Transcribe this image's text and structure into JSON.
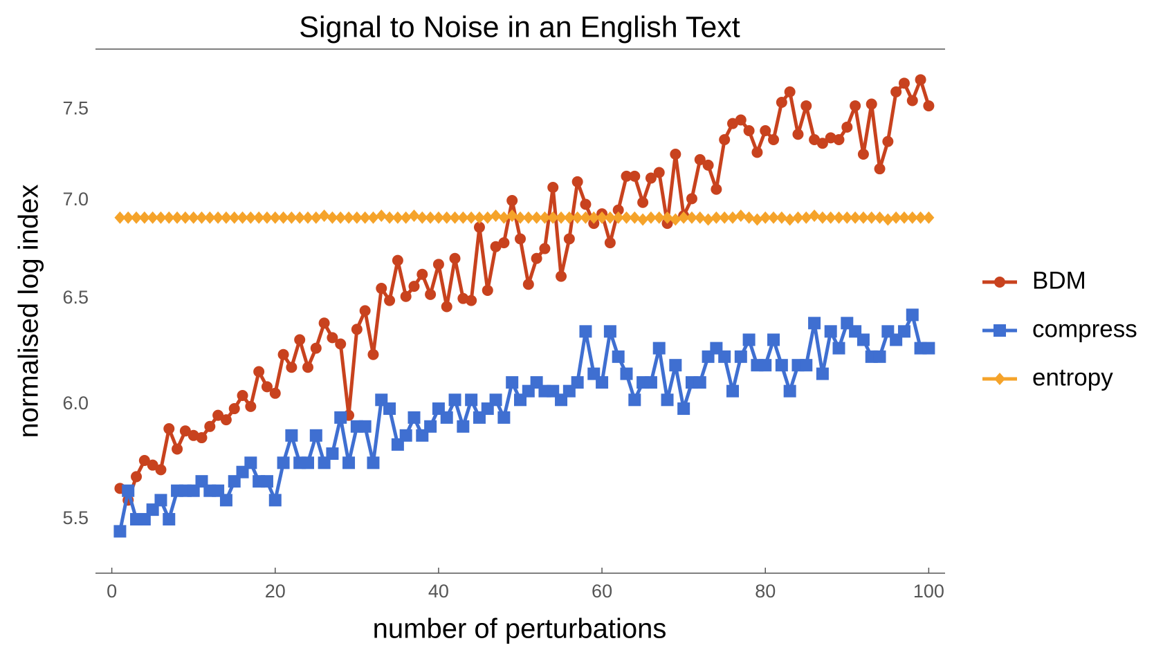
{
  "chart_data": {
    "type": "line",
    "title": "Signal to Noise in an English Text",
    "xlabel": "number of perturbations",
    "ylabel": "normalised log index",
    "x": [
      1,
      2,
      3,
      4,
      5,
      6,
      7,
      8,
      9,
      10,
      11,
      12,
      13,
      14,
      15,
      16,
      17,
      18,
      19,
      20,
      21,
      22,
      23,
      24,
      25,
      26,
      27,
      28,
      29,
      30,
      31,
      32,
      33,
      34,
      35,
      36,
      37,
      38,
      39,
      40,
      41,
      42,
      43,
      44,
      45,
      46,
      47,
      48,
      49,
      50,
      51,
      52,
      53,
      54,
      55,
      56,
      57,
      58,
      59,
      60,
      61,
      62,
      63,
      64,
      65,
      66,
      67,
      68,
      69,
      70,
      71,
      72,
      73,
      74,
      75,
      76,
      77,
      78,
      79,
      80,
      81,
      82,
      83,
      84,
      85,
      86,
      87,
      88,
      89,
      90,
      91,
      92,
      93,
      94,
      95,
      96,
      97,
      98,
      99,
      100
    ],
    "series": [
      {
        "name": "BDM",
        "color": "#c8421e",
        "marker": "circle",
        "values": [
          5.63,
          5.58,
          5.68,
          5.75,
          5.73,
          5.71,
          5.89,
          5.8,
          5.88,
          5.86,
          5.85,
          5.9,
          5.95,
          5.93,
          5.98,
          6.04,
          5.99,
          6.15,
          6.08,
          6.05,
          6.23,
          6.17,
          6.3,
          6.17,
          6.26,
          6.38,
          6.31,
          6.28,
          5.95,
          6.35,
          6.44,
          6.23,
          6.55,
          6.49,
          6.69,
          6.51,
          6.56,
          6.62,
          6.52,
          6.67,
          6.46,
          6.7,
          6.5,
          6.49,
          6.86,
          6.54,
          6.76,
          6.78,
          7.0,
          6.8,
          6.57,
          6.7,
          6.75,
          7.07,
          6.61,
          6.8,
          7.1,
          6.98,
          6.88,
          6.93,
          6.78,
          6.95,
          7.13,
          7.13,
          6.99,
          7.12,
          7.15,
          6.88,
          7.25,
          6.92,
          7.01,
          7.22,
          7.19,
          7.06,
          7.33,
          7.42,
          7.44,
          7.38,
          7.26,
          7.38,
          7.33,
          7.54,
          7.6,
          7.36,
          7.52,
          7.33,
          7.31,
          7.34,
          7.33,
          7.4,
          7.52,
          7.25,
          7.53,
          7.17,
          7.32,
          7.6,
          7.65,
          7.55,
          7.67,
          7.52
        ]
      },
      {
        "name": "compress",
        "color": "#3f6fd1",
        "marker": "square",
        "values": [
          5.45,
          5.62,
          5.5,
          5.5,
          5.54,
          5.58,
          5.5,
          5.62,
          5.62,
          5.62,
          5.66,
          5.62,
          5.62,
          5.58,
          5.66,
          5.7,
          5.74,
          5.66,
          5.66,
          5.58,
          5.74,
          5.86,
          5.74,
          5.74,
          5.86,
          5.74,
          5.78,
          5.94,
          5.74,
          5.9,
          5.9,
          5.74,
          6.02,
          5.98,
          5.82,
          5.86,
          5.94,
          5.86,
          5.9,
          5.98,
          5.94,
          6.02,
          5.9,
          6.02,
          5.94,
          5.98,
          6.02,
          5.94,
          6.1,
          6.02,
          6.06,
          6.1,
          6.06,
          6.06,
          6.02,
          6.06,
          6.1,
          6.34,
          6.14,
          6.1,
          6.34,
          6.22,
          6.14,
          6.02,
          6.1,
          6.1,
          6.26,
          6.02,
          6.18,
          5.98,
          6.1,
          6.1,
          6.22,
          6.26,
          6.22,
          6.06,
          6.22,
          6.3,
          6.18,
          6.18,
          6.3,
          6.18,
          6.06,
          6.18,
          6.18,
          6.38,
          6.14,
          6.34,
          6.26,
          6.38,
          6.34,
          6.3,
          6.22,
          6.22,
          6.34,
          6.3,
          6.34,
          6.42,
          6.26,
          6.26
        ]
      },
      {
        "name": "entropy",
        "color": "#f5a32a",
        "marker": "diamond",
        "values": [
          6.91,
          6.91,
          6.91,
          6.91,
          6.91,
          6.91,
          6.91,
          6.91,
          6.91,
          6.91,
          6.91,
          6.91,
          6.91,
          6.91,
          6.91,
          6.91,
          6.91,
          6.91,
          6.91,
          6.91,
          6.91,
          6.91,
          6.91,
          6.91,
          6.91,
          6.92,
          6.91,
          6.91,
          6.91,
          6.91,
          6.91,
          6.91,
          6.92,
          6.91,
          6.91,
          6.91,
          6.92,
          6.91,
          6.91,
          6.91,
          6.91,
          6.91,
          6.91,
          6.91,
          6.91,
          6.91,
          6.92,
          6.91,
          6.92,
          6.91,
          6.91,
          6.91,
          6.91,
          6.91,
          6.91,
          6.91,
          6.91,
          6.91,
          6.91,
          6.91,
          6.91,
          6.91,
          6.91,
          6.91,
          6.9,
          6.91,
          6.91,
          6.91,
          6.9,
          6.91,
          6.91,
          6.91,
          6.9,
          6.91,
          6.91,
          6.91,
          6.92,
          6.91,
          6.9,
          6.91,
          6.91,
          6.91,
          6.9,
          6.91,
          6.91,
          6.92,
          6.91,
          6.91,
          6.91,
          6.91,
          6.91,
          6.91,
          6.91,
          6.91,
          6.9,
          6.91,
          6.91,
          6.91,
          6.91,
          6.91
        ]
      }
    ],
    "xlim": [
      -2,
      102
    ],
    "xticks": [
      0,
      20,
      40,
      60,
      80,
      100
    ],
    "ylim": [
      5.28,
      7.85
    ],
    "yscale": "log",
    "yticks": [
      5.5,
      {
        "value": 6,
        "label": "6.0"
      },
      6.5,
      {
        "value": 7,
        "label": "7.0"
      },
      7.5
    ],
    "legend": "right",
    "grid": false
  }
}
